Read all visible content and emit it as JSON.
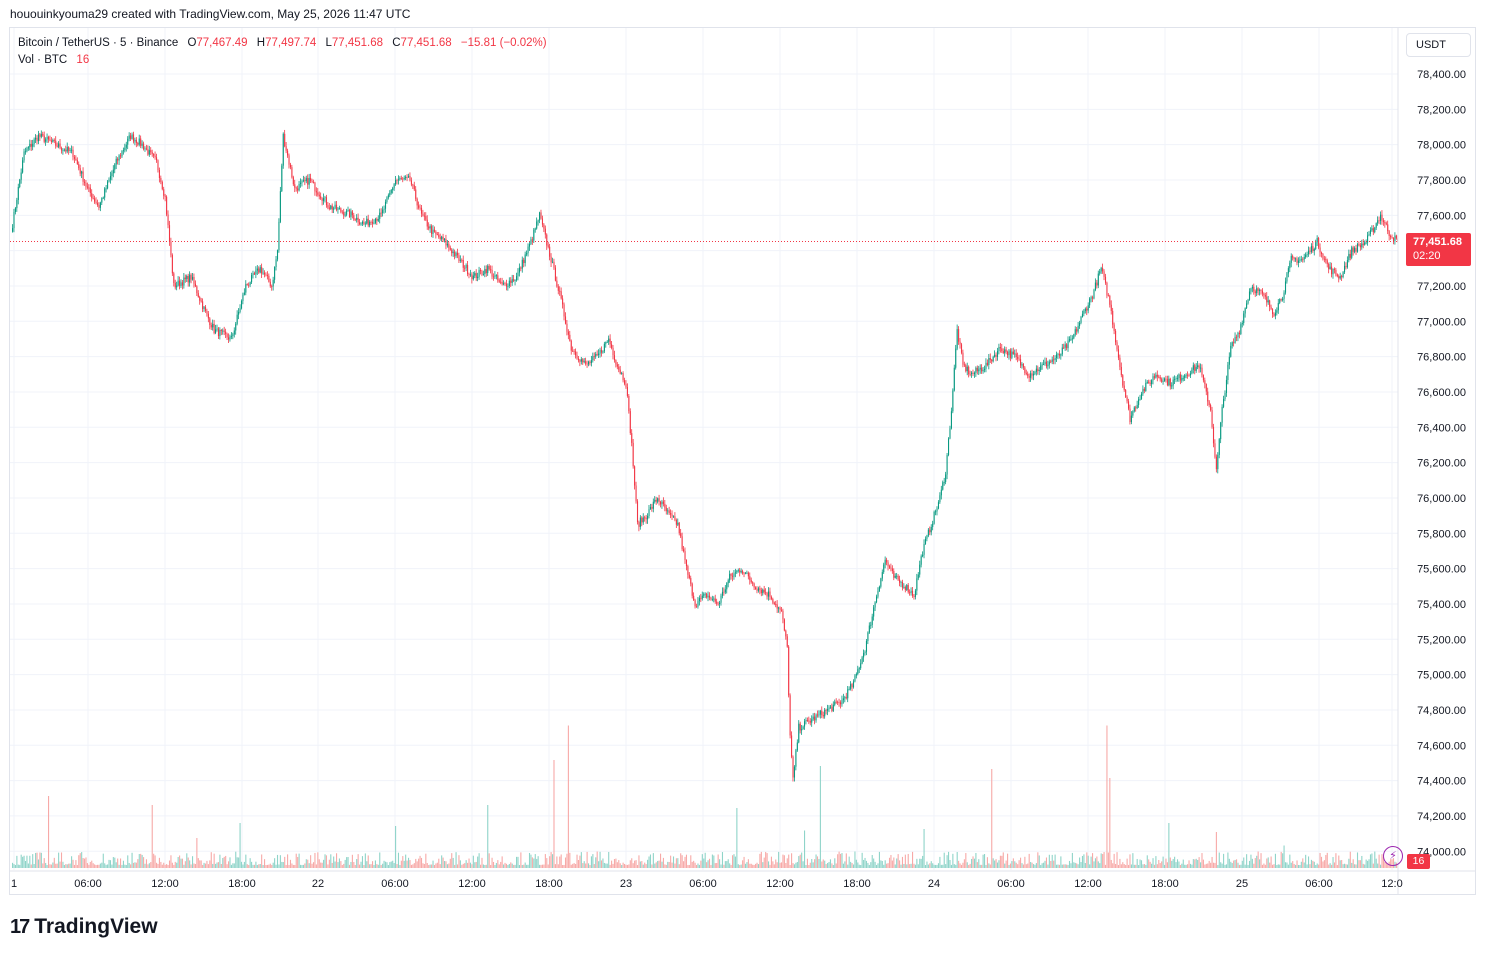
{
  "attribution": "hououinkyouma29 created with TradingView.com, May 25, 2026 11:47 UTC",
  "legend": {
    "symbol": "Bitcoin / TetherUS · 5 · Binance",
    "open_label": "O",
    "open": "77,467.49",
    "high_label": "H",
    "high": "77,497.74",
    "low_label": "L",
    "low": "77,451.68",
    "close_label": "C",
    "close": "77,451.68",
    "change": "−15.81 (−0.02%)",
    "vol_label": "Vol · BTC",
    "vol_value": "16"
  },
  "currency": "USDT",
  "last_price": {
    "price": "77,451.68",
    "countdown": "02:20"
  },
  "volume_badge": "16",
  "logo_text": "TradingView",
  "colors": {
    "up": "#089981",
    "down": "#f23645",
    "up_vol": "#8fd4c9",
    "down_vol": "#f7a9a7",
    "grid": "#f0f3fa",
    "axis_text": "#131722"
  },
  "chart_data": {
    "type": "candlestick",
    "symbol": "BTC/USDT",
    "timeframe": "5",
    "ylim": [
      73900,
      78550
    ],
    "y_ticks": [
      "78,400.00",
      "78,200.00",
      "78,000.00",
      "77,800.00",
      "77,600.00",
      "77,400.00",
      "77,200.00",
      "77,000.00",
      "76,800.00",
      "76,600.00",
      "76,400.00",
      "76,200.00",
      "76,000.00",
      "75,800.00",
      "75,600.00",
      "75,400.00",
      "75,200.00",
      "75,000.00",
      "74,800.00",
      "74,600.00",
      "74,400.00",
      "74,200.00",
      "74,000.00"
    ],
    "x_ticks": [
      "1",
      "06:00",
      "12:00",
      "18:00",
      "22",
      "06:00",
      "12:00",
      "18:00",
      "23",
      "06:00",
      "12:00",
      "18:00",
      "24",
      "06:00",
      "12:00",
      "18:00",
      "25",
      "06:00",
      "12:0"
    ],
    "last_price": 77451.68,
    "price_path": [
      [
        0,
        77550
      ],
      [
        8,
        77950
      ],
      [
        18,
        78050
      ],
      [
        30,
        78000
      ],
      [
        42,
        77950
      ],
      [
        52,
        77750
      ],
      [
        60,
        77650
      ],
      [
        72,
        77900
      ],
      [
        82,
        78050
      ],
      [
        90,
        78000
      ],
      [
        100,
        77900
      ],
      [
        106,
        77700
      ],
      [
        112,
        77200
      ],
      [
        124,
        77250
      ],
      [
        134,
        77050
      ],
      [
        140,
        76950
      ],
      [
        152,
        76900
      ],
      [
        162,
        77200
      ],
      [
        172,
        77300
      ],
      [
        180,
        77200
      ],
      [
        184,
        77400
      ],
      [
        188,
        78050
      ],
      [
        196,
        77750
      ],
      [
        206,
        77800
      ],
      [
        220,
        77650
      ],
      [
        236,
        77600
      ],
      [
        244,
        77550
      ],
      [
        256,
        77600
      ],
      [
        266,
        77800
      ],
      [
        276,
        77800
      ],
      [
        284,
        77600
      ],
      [
        292,
        77500
      ],
      [
        300,
        77450
      ],
      [
        310,
        77350
      ],
      [
        320,
        77250
      ],
      [
        330,
        77300
      ],
      [
        340,
        77200
      ],
      [
        350,
        77250
      ],
      [
        360,
        77450
      ],
      [
        366,
        77600
      ],
      [
        374,
        77350
      ],
      [
        380,
        77150
      ],
      [
        388,
        76850
      ],
      [
        398,
        76750
      ],
      [
        406,
        76800
      ],
      [
        414,
        76900
      ],
      [
        420,
        76750
      ],
      [
        426,
        76650
      ],
      [
        430,
        76300
      ],
      [
        434,
        75850
      ],
      [
        440,
        75900
      ],
      [
        448,
        76000
      ],
      [
        456,
        75900
      ],
      [
        462,
        75850
      ],
      [
        468,
        75600
      ],
      [
        474,
        75400
      ],
      [
        482,
        75450
      ],
      [
        490,
        75400
      ],
      [
        498,
        75550
      ],
      [
        506,
        75600
      ],
      [
        516,
        75500
      ],
      [
        526,
        75450
      ],
      [
        534,
        75350
      ],
      [
        538,
        75150
      ],
      [
        540,
        74650
      ],
      [
        542,
        74400
      ],
      [
        546,
        74700
      ],
      [
        556,
        74750
      ],
      [
        566,
        74800
      ],
      [
        576,
        74850
      ],
      [
        584,
        74950
      ],
      [
        592,
        75150
      ],
      [
        600,
        75450
      ],
      [
        606,
        75650
      ],
      [
        612,
        75550
      ],
      [
        620,
        75500
      ],
      [
        626,
        75450
      ],
      [
        632,
        75700
      ],
      [
        638,
        75850
      ],
      [
        644,
        76000
      ],
      [
        648,
        76150
      ],
      [
        652,
        76500
      ],
      [
        656,
        76950
      ],
      [
        660,
        76750
      ],
      [
        666,
        76700
      ],
      [
        676,
        76750
      ],
      [
        686,
        76850
      ],
      [
        696,
        76800
      ],
      [
        706,
        76700
      ],
      [
        716,
        76750
      ],
      [
        726,
        76800
      ],
      [
        736,
        76900
      ],
      [
        744,
        77050
      ],
      [
        750,
        77150
      ],
      [
        756,
        77300
      ],
      [
        762,
        77100
      ],
      [
        770,
        76700
      ],
      [
        776,
        76450
      ],
      [
        784,
        76600
      ],
      [
        794,
        76700
      ],
      [
        804,
        76650
      ],
      [
        814,
        76700
      ],
      [
        824,
        76750
      ],
      [
        832,
        76500
      ],
      [
        836,
        76150
      ],
      [
        840,
        76500
      ],
      [
        846,
        76850
      ],
      [
        852,
        76950
      ],
      [
        860,
        77200
      ],
      [
        868,
        77150
      ],
      [
        876,
        77050
      ],
      [
        882,
        77150
      ],
      [
        888,
        77350
      ],
      [
        896,
        77350
      ],
      [
        906,
        77450
      ],
      [
        914,
        77300
      ],
      [
        922,
        77250
      ],
      [
        930,
        77400
      ],
      [
        940,
        77450
      ],
      [
        950,
        77600
      ],
      [
        956,
        77500
      ],
      [
        962,
        77450
      ]
    ],
    "volume_spikes": [
      [
        25,
        0.48
      ],
      [
        97,
        0.42
      ],
      [
        128,
        0.2
      ],
      [
        158,
        0.3
      ],
      [
        266,
        0.28
      ],
      [
        330,
        0.42
      ],
      [
        376,
        0.72
      ],
      [
        386,
        0.95
      ],
      [
        503,
        0.4
      ],
      [
        550,
        0.25
      ],
      [
        561,
        0.68
      ],
      [
        633,
        0.26
      ],
      [
        680,
        0.66
      ],
      [
        762,
        0.6
      ],
      [
        760,
        0.95
      ],
      [
        803,
        0.3
      ],
      [
        836,
        0.24
      ],
      [
        883,
        0.15
      ]
    ]
  }
}
